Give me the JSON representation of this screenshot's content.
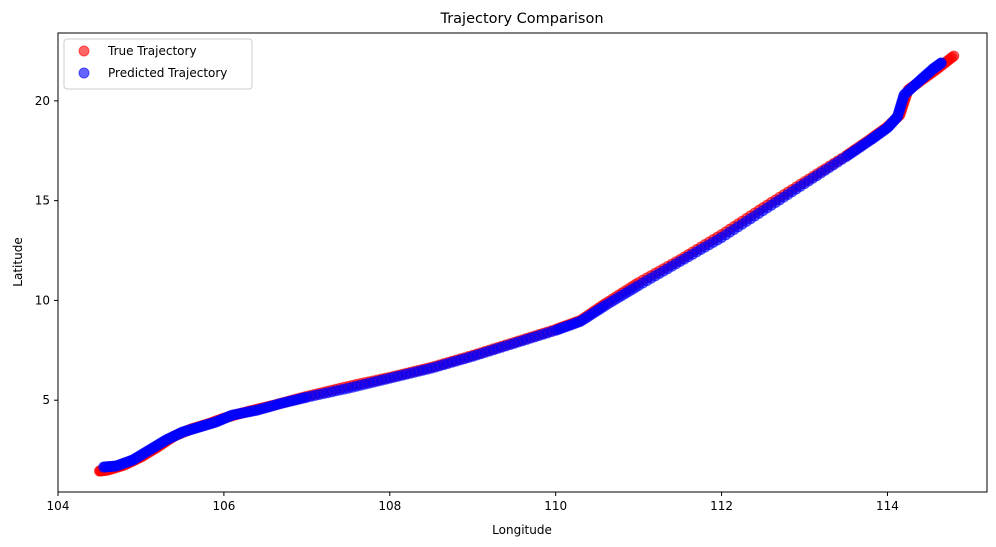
{
  "chart_data": {
    "type": "scatter",
    "title": "Trajectory Comparison",
    "xlabel": "Longitude",
    "ylabel": "Latitude",
    "xlim": [
      104.0,
      115.2
    ],
    "ylim": [
      0.4,
      23.4
    ],
    "xticks": [
      104,
      106,
      108,
      110,
      112,
      114
    ],
    "yticks": [
      5,
      10,
      15,
      20
    ],
    "grid": false,
    "legend_position": "upper-left",
    "series": [
      {
        "name": "True Trajectory",
        "color": "#ff0000",
        "alpha": 0.6,
        "points": [
          [
            104.5,
            1.45
          ],
          [
            104.6,
            1.5
          ],
          [
            104.8,
            1.75
          ],
          [
            105.0,
            2.15
          ],
          [
            105.2,
            2.65
          ],
          [
            105.4,
            3.2
          ],
          [
            105.6,
            3.55
          ],
          [
            105.8,
            3.8
          ],
          [
            106.0,
            4.1
          ],
          [
            106.3,
            4.45
          ],
          [
            106.6,
            4.75
          ],
          [
            107.0,
            5.2
          ],
          [
            107.5,
            5.7
          ],
          [
            108.0,
            6.15
          ],
          [
            108.5,
            6.65
          ],
          [
            109.0,
            7.25
          ],
          [
            109.5,
            7.9
          ],
          [
            110.0,
            8.55
          ],
          [
            110.3,
            9.0
          ],
          [
            110.6,
            9.85
          ],
          [
            111.0,
            10.9
          ],
          [
            111.5,
            12.05
          ],
          [
            112.0,
            13.3
          ],
          [
            112.5,
            14.65
          ],
          [
            113.0,
            15.95
          ],
          [
            113.5,
            17.25
          ],
          [
            113.8,
            18.1
          ],
          [
            114.0,
            18.7
          ],
          [
            114.15,
            19.3
          ],
          [
            114.25,
            20.55
          ],
          [
            114.4,
            21.0
          ],
          [
            114.6,
            21.6
          ],
          [
            114.8,
            22.25
          ]
        ]
      },
      {
        "name": "Predicted Trajectory",
        "color": "#0000ff",
        "alpha": 0.6,
        "points": [
          [
            104.55,
            1.65
          ],
          [
            104.7,
            1.7
          ],
          [
            104.9,
            2.0
          ],
          [
            105.1,
            2.5
          ],
          [
            105.3,
            3.0
          ],
          [
            105.5,
            3.4
          ],
          [
            105.7,
            3.65
          ],
          [
            105.9,
            3.9
          ],
          [
            106.1,
            4.25
          ],
          [
            106.4,
            4.5
          ],
          [
            106.7,
            4.85
          ],
          [
            107.0,
            5.15
          ],
          [
            107.5,
            5.6
          ],
          [
            108.0,
            6.1
          ],
          [
            108.5,
            6.6
          ],
          [
            109.0,
            7.2
          ],
          [
            109.5,
            7.85
          ],
          [
            110.0,
            8.5
          ],
          [
            110.3,
            8.95
          ],
          [
            110.6,
            9.75
          ],
          [
            111.0,
            10.75
          ],
          [
            111.5,
            11.95
          ],
          [
            112.0,
            13.15
          ],
          [
            112.5,
            14.5
          ],
          [
            113.0,
            15.85
          ],
          [
            113.5,
            17.2
          ],
          [
            113.8,
            18.05
          ],
          [
            114.0,
            18.65
          ],
          [
            114.12,
            19.2
          ],
          [
            114.2,
            20.3
          ],
          [
            114.4,
            21.05
          ],
          [
            114.55,
            21.6
          ],
          [
            114.65,
            21.9
          ]
        ]
      }
    ]
  }
}
